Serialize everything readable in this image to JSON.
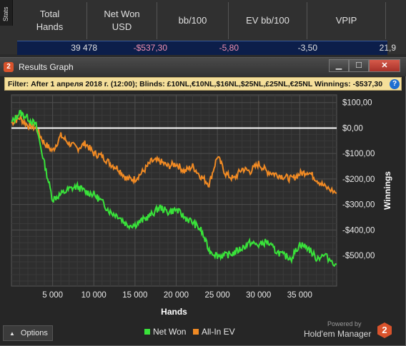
{
  "stats": {
    "tab_label": "Stats",
    "headers": [
      "Total\nHands",
      "Net Won\nUSD",
      "bb/100",
      "EV bb/100",
      "VPIP"
    ],
    "values": [
      "39 478",
      "-$537,30",
      "-5,80",
      "-3,50",
      "21,9"
    ]
  },
  "window": {
    "icon_glyph": "2",
    "title": "Results Graph",
    "min_glyph": "▁",
    "max_glyph": "☐",
    "close_glyph": "✕"
  },
  "filter": {
    "label": "Filter:",
    "text": "After 1 апреля 2018 г. (12:00); Blinds: £10NL,€10NL,$16NL,$25NL,£25NL,€25NL Winnings: -$537,30",
    "help_glyph": "?"
  },
  "chart_data": {
    "type": "line",
    "xlabel": "Hands",
    "ylabel": "Winnings",
    "xlim": [
      0,
      39478
    ],
    "ylim": [
      -620,
      130
    ],
    "x_ticks": [
      5000,
      10000,
      15000,
      20000,
      25000,
      30000,
      35000
    ],
    "x_tick_labels": [
      "5 000",
      "10 000",
      "15 000",
      "20 000",
      "25 000",
      "30 000",
      "35 000"
    ],
    "y_ticks": [
      100,
      0,
      -100,
      -200,
      -300,
      -400,
      -500
    ],
    "y_tick_labels": [
      "$100,00",
      "$0,00",
      "-$100,00",
      "-$200,00",
      "-$300,00",
      "-$400,00",
      "-$500,00"
    ],
    "grid": true,
    "legend_position": "bottom",
    "x": [
      0,
      1000,
      2000,
      3000,
      4000,
      5000,
      6000,
      7000,
      8000,
      9000,
      10000,
      11000,
      12000,
      13000,
      14000,
      15000,
      16000,
      17000,
      18000,
      19000,
      20000,
      21000,
      22000,
      23000,
      24000,
      25000,
      26000,
      27000,
      28000,
      29000,
      30000,
      31000,
      32000,
      33000,
      34000,
      35000,
      36000,
      37000,
      38000,
      39478
    ],
    "series": [
      {
        "name": "Net Won",
        "color": "#39e23a",
        "values": [
          20,
          60,
          40,
          10,
          -140,
          -280,
          -260,
          -240,
          -230,
          -250,
          -260,
          -290,
          -330,
          -345,
          -380,
          -380,
          -360,
          -340,
          -310,
          -330,
          -320,
          -350,
          -370,
          -400,
          -480,
          -500,
          -500,
          -490,
          -470,
          -450,
          -460,
          -445,
          -480,
          -500,
          -510,
          -455,
          -470,
          -510,
          -500,
          -535
        ]
      },
      {
        "name": "All-In EV",
        "color": "#f08a24",
        "values": [
          20,
          40,
          10,
          0,
          -60,
          -90,
          -30,
          -60,
          -80,
          -60,
          -100,
          -110,
          -140,
          -160,
          -200,
          -200,
          -170,
          -130,
          -130,
          -150,
          -140,
          -170,
          -150,
          -190,
          -220,
          -110,
          -180,
          -200,
          -160,
          -170,
          -140,
          -170,
          -180,
          -190,
          -200,
          -180,
          -170,
          -200,
          -230,
          -255
        ]
      }
    ]
  },
  "options": {
    "label": "Options",
    "glyph": "▲"
  },
  "branding": {
    "powered_by": "Powered by",
    "name": "Hold'em Manager",
    "logo_glyph": "2"
  }
}
